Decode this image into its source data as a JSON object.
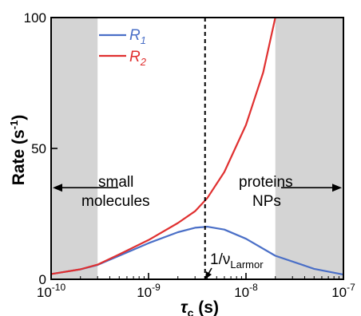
{
  "chart_data": {
    "type": "line",
    "x_scale": "log",
    "xlim": [
      1e-10,
      1e-07
    ],
    "ylim": [
      0,
      100
    ],
    "xlabel_main": "τ",
    "xlabel_sub": "c",
    "xlabel_unit": " (s)",
    "ylabel_main": "Rate (s",
    "ylabel_sup": "-1",
    "ylabel_close": ")",
    "x_ticks": [
      {
        "value": 1e-10,
        "base": "10",
        "exp": "-10"
      },
      {
        "value": 1e-09,
        "base": "10",
        "exp": "-9"
      },
      {
        "value": 1e-08,
        "base": "10",
        "exp": "-8"
      },
      {
        "value": 1e-07,
        "base": "10",
        "exp": "-7"
      }
    ],
    "y_ticks": [
      {
        "value": 0,
        "label": "0"
      },
      {
        "value": 50,
        "label": "50"
      },
      {
        "value": 100,
        "label": "100"
      }
    ],
    "shaded_regions": [
      {
        "x0": 1e-10,
        "x1": 3e-10,
        "color": "#d4d4d4"
      },
      {
        "x0": 2e-08,
        "x1": 1e-07,
        "color": "#d4d4d4"
      }
    ],
    "vline": {
      "x": 3.8e-09,
      "style": "dashed",
      "label_main": "1/ν",
      "label_sub": "Larmor"
    },
    "legend": {
      "placement": "top-left"
    },
    "series": [
      {
        "name_main": "R",
        "name_sub": "1",
        "color": "#4a6fc7",
        "x": [
          1e-10,
          2e-10,
          3e-10,
          5e-10,
          1e-09,
          2e-09,
          3e-09,
          4e-09,
          6e-09,
          1e-08,
          2e-08,
          5e-08,
          1e-07
        ],
        "y": [
          2,
          3.8,
          5.5,
          9,
          13.8,
          18,
          19.7,
          20.1,
          19,
          15.5,
          9,
          4,
          1.8
        ]
      },
      {
        "name_main": "R",
        "name_sub": "2",
        "color": "#e03030",
        "x": [
          1e-10,
          2e-10,
          3e-10,
          5e-10,
          1e-09,
          2e-09,
          3e-09,
          4e-09,
          6e-09,
          1e-08,
          1.5e-08,
          2e-08
        ],
        "y": [
          2,
          3.8,
          5.6,
          9.5,
          15,
          21.5,
          26,
          31,
          41,
          59,
          79,
          100
        ]
      }
    ],
    "annotations": [
      {
        "id": "small",
        "lines": [
          "small",
          "molecules"
        ],
        "arrow": "left",
        "arrow_y": 35
      },
      {
        "id": "proteins",
        "lines": [
          "proteins",
          "NPs"
        ],
        "arrow": "right",
        "arrow_y": 35
      }
    ]
  }
}
